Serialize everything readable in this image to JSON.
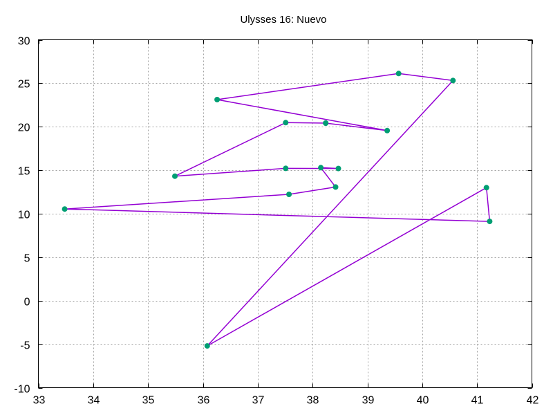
{
  "chart_data": {
    "type": "line",
    "title": "Ulysses 16: Nuevo",
    "xlabel": "",
    "ylabel": "",
    "xlim": [
      33,
      42
    ],
    "ylim": [
      -10,
      30
    ],
    "x_ticks": [
      33,
      34,
      35,
      36,
      37,
      38,
      39,
      40,
      41,
      42
    ],
    "y_ticks": [
      -10,
      -5,
      0,
      5,
      10,
      15,
      20,
      25,
      30
    ],
    "grid": true,
    "line_color": "#9400d3",
    "marker_color": "#009e73",
    "series": [
      {
        "points": [
          {
            "x": 38.24,
            "y": 20.42
          },
          {
            "x": 39.36,
            "y": 19.56
          },
          {
            "x": 36.26,
            "y": 23.12
          },
          {
            "x": 39.57,
            "y": 26.12
          },
          {
            "x": 40.56,
            "y": 25.32
          },
          {
            "x": 36.08,
            "y": -5.2
          },
          {
            "x": 41.17,
            "y": 13.0
          },
          {
            "x": 41.23,
            "y": 9.12
          },
          {
            "x": 33.48,
            "y": 10.54
          },
          {
            "x": 37.57,
            "y": 12.23
          },
          {
            "x": 38.42,
            "y": 13.07
          },
          {
            "x": 38.15,
            "y": 15.3
          },
          {
            "x": 38.47,
            "y": 15.2
          },
          {
            "x": 37.51,
            "y": 15.22
          },
          {
            "x": 35.49,
            "y": 14.32
          },
          {
            "x": 37.51,
            "y": 20.47
          },
          {
            "x": 38.24,
            "y": 20.42
          }
        ]
      }
    ]
  }
}
